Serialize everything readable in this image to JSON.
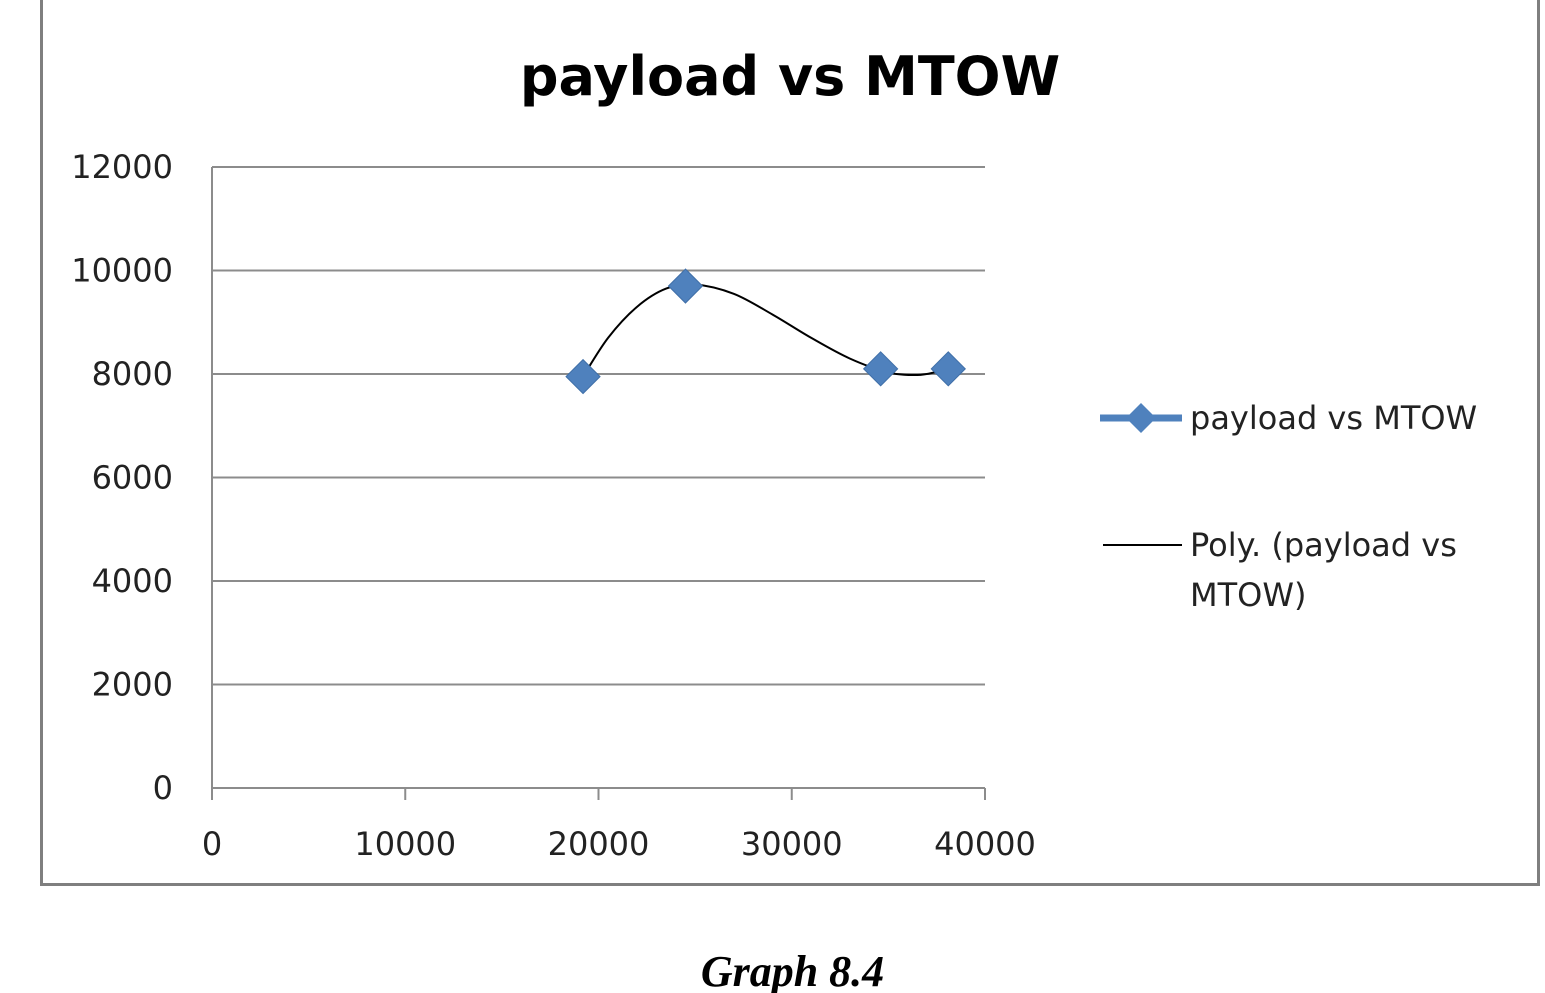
{
  "chart_data": {
    "type": "scatter",
    "title": "payload vs MTOW",
    "xlabel": "",
    "ylabel": "",
    "xlim": [
      0,
      40000
    ],
    "ylim": [
      0,
      12000
    ],
    "x_ticks": [
      "0",
      "10000",
      "20000",
      "30000",
      "40000"
    ],
    "y_ticks": [
      "0",
      "2000",
      "4000",
      "6000",
      "8000",
      "10000",
      "12000"
    ],
    "grid": "horizontal",
    "legend_position": "right",
    "series": [
      {
        "name": "payload vs MTOW",
        "marker": "diamond",
        "color": "#4f81bd",
        "points": [
          {
            "x": 19200,
            "y": 7950
          },
          {
            "x": 24500,
            "y": 9700
          },
          {
            "x": 34600,
            "y": 8100
          },
          {
            "x": 38100,
            "y": 8100
          }
        ]
      },
      {
        "name": "Poly. (payload vs MTOW)",
        "legend_lines": [
          "Poly. (payload vs",
          "MTOW)"
        ],
        "type": "polynomial-trendline",
        "color": "#000000",
        "curve": [
          {
            "x": 19200,
            "y": 7950
          },
          {
            "x": 20500,
            "y": 8700
          },
          {
            "x": 22000,
            "y": 9300
          },
          {
            "x": 23500,
            "y": 9650
          },
          {
            "x": 25000,
            "y": 9730
          },
          {
            "x": 27000,
            "y": 9550
          },
          {
            "x": 29000,
            "y": 9150
          },
          {
            "x": 31000,
            "y": 8700
          },
          {
            "x": 33000,
            "y": 8300
          },
          {
            "x": 35000,
            "y": 8030
          },
          {
            "x": 36500,
            "y": 7980
          },
          {
            "x": 37500,
            "y": 8040
          },
          {
            "x": 38100,
            "y": 8100
          }
        ]
      }
    ]
  },
  "caption": "Graph 8.4"
}
